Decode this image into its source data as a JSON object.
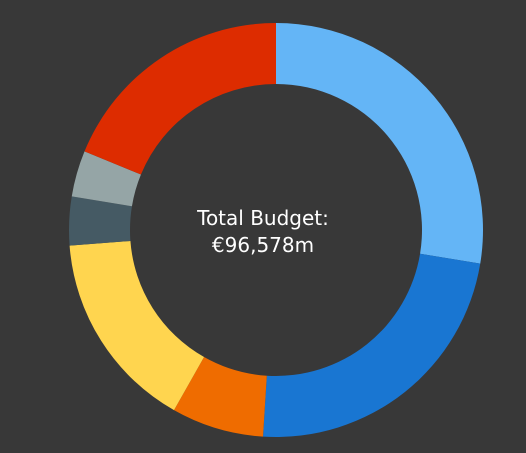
{
  "chart_data": {
    "type": "pie",
    "donut": true,
    "center_label": {
      "title": "Total Budget:",
      "value": "€96,578m"
    },
    "slices": [
      {
        "value": 27.6,
        "color": "#64b5f6"
      },
      {
        "value": 23.4,
        "color": "#1976d2"
      },
      {
        "value": 7.2,
        "color": "#ef6c00"
      },
      {
        "value": 15.6,
        "color": "#ffd54f"
      },
      {
        "value": 3.8,
        "color": "#455a64"
      },
      {
        "value": 3.6,
        "color": "#95a5a6"
      },
      {
        "value": 18.8,
        "color": "#dd2c00"
      }
    ],
    "background": "#383838",
    "legend": "none"
  }
}
